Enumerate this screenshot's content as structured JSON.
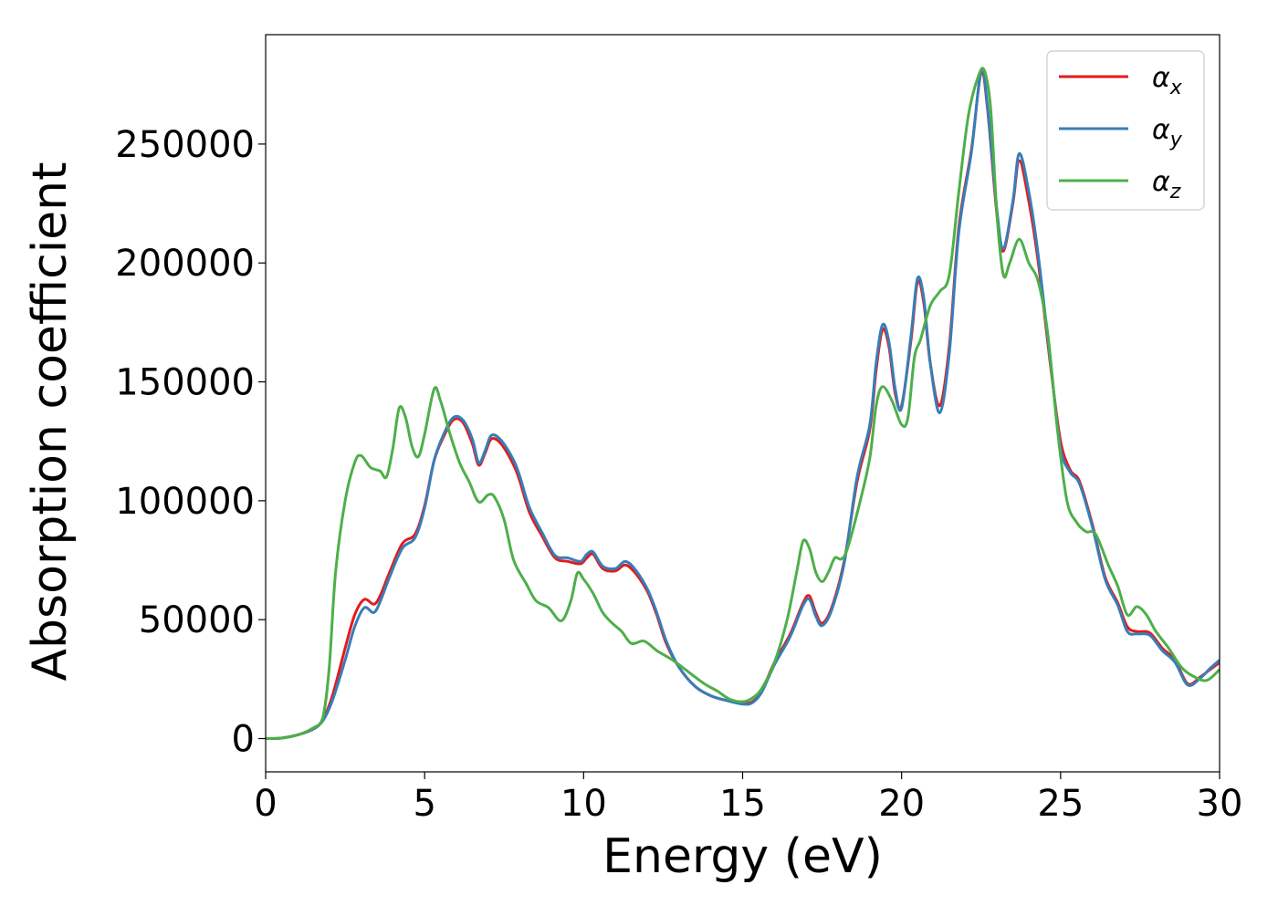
{
  "chart_data": {
    "type": "line",
    "xlabel": "Energy (eV)",
    "ylabel": "Absorption coefficient",
    "xlim": [
      0,
      30
    ],
    "ylim": [
      -14000,
      296000
    ],
    "xticks": [
      0,
      5,
      10,
      15,
      20,
      25,
      30
    ],
    "yticks": [
      0,
      50000,
      100000,
      150000,
      200000,
      250000
    ],
    "grid": false,
    "legend_position": "top-right",
    "series": [
      {
        "name": "α",
        "name_subscript": "x",
        "color": "#e41a1c",
        "points": [
          [
            0,
            0
          ],
          [
            0.5,
            200
          ],
          [
            1,
            1500
          ],
          [
            1.5,
            4000
          ],
          [
            1.8,
            8000
          ],
          [
            2.1,
            18000
          ],
          [
            2.5,
            38000
          ],
          [
            2.8,
            52000
          ],
          [
            3.1,
            58500
          ],
          [
            3.4,
            56500
          ],
          [
            3.6,
            60000
          ],
          [
            3.9,
            70000
          ],
          [
            4.3,
            82000
          ],
          [
            4.7,
            86000
          ],
          [
            5.0,
            98000
          ],
          [
            5.3,
            117000
          ],
          [
            5.6,
            127000
          ],
          [
            5.9,
            134000
          ],
          [
            6.2,
            133000
          ],
          [
            6.5,
            124000
          ],
          [
            6.7,
            115000
          ],
          [
            6.9,
            120000
          ],
          [
            7.1,
            126000
          ],
          [
            7.4,
            124000
          ],
          [
            7.8,
            115000
          ],
          [
            8.0,
            108000
          ],
          [
            8.3,
            95000
          ],
          [
            8.7,
            85000
          ],
          [
            9.1,
            76000
          ],
          [
            9.5,
            74500
          ],
          [
            9.9,
            73500
          ],
          [
            10.1,
            76000
          ],
          [
            10.3,
            77500
          ],
          [
            10.6,
            71500
          ],
          [
            11.0,
            70500
          ],
          [
            11.3,
            73000
          ],
          [
            11.6,
            70000
          ],
          [
            12.0,
            62000
          ],
          [
            12.3,
            52000
          ],
          [
            12.6,
            40000
          ],
          [
            13.0,
            30000
          ],
          [
            13.5,
            22000
          ],
          [
            14.0,
            18000
          ],
          [
            14.5,
            16000
          ],
          [
            15.0,
            15000
          ],
          [
            15.3,
            15500
          ],
          [
            15.6,
            20000
          ],
          [
            16.0,
            32000
          ],
          [
            16.5,
            44000
          ],
          [
            16.9,
            57000
          ],
          [
            17.1,
            60000
          ],
          [
            17.3,
            53000
          ],
          [
            17.5,
            48500
          ],
          [
            17.8,
            55000
          ],
          [
            18.2,
            75000
          ],
          [
            18.6,
            108000
          ],
          [
            19.0,
            130000
          ],
          [
            19.2,
            155000
          ],
          [
            19.4,
            172000
          ],
          [
            19.6,
            165000
          ],
          [
            19.8,
            145000
          ],
          [
            20.0,
            140000
          ],
          [
            20.3,
            168000
          ],
          [
            20.5,
            192000
          ],
          [
            20.7,
            183000
          ],
          [
            20.9,
            158000
          ],
          [
            21.2,
            140000
          ],
          [
            21.5,
            165000
          ],
          [
            21.8,
            215000
          ],
          [
            22.2,
            248000
          ],
          [
            22.5,
            280000
          ],
          [
            22.7,
            265000
          ],
          [
            23.0,
            220000
          ],
          [
            23.2,
            205000
          ],
          [
            23.5,
            225000
          ],
          [
            23.7,
            243000
          ],
          [
            24.0,
            226000
          ],
          [
            24.3,
            200000
          ],
          [
            24.7,
            155000
          ],
          [
            25.0,
            125000
          ],
          [
            25.3,
            113000
          ],
          [
            25.6,
            108000
          ],
          [
            26.0,
            90000
          ],
          [
            26.4,
            68000
          ],
          [
            26.8,
            57000
          ],
          [
            27.1,
            47000
          ],
          [
            27.4,
            45000
          ],
          [
            27.8,
            44500
          ],
          [
            28.2,
            38000
          ],
          [
            28.6,
            33000
          ],
          [
            29.0,
            23000
          ],
          [
            29.4,
            26000
          ],
          [
            29.7,
            29000
          ],
          [
            30.0,
            32000
          ]
        ]
      },
      {
        "name": "α",
        "name_subscript": "y",
        "color": "#377eb8",
        "points": [
          [
            0,
            0
          ],
          [
            0.5,
            200
          ],
          [
            1,
            1500
          ],
          [
            1.5,
            4000
          ],
          [
            1.8,
            7500
          ],
          [
            2.1,
            16000
          ],
          [
            2.5,
            33000
          ],
          [
            2.8,
            47000
          ],
          [
            3.1,
            55000
          ],
          [
            3.4,
            53000
          ],
          [
            3.6,
            57500
          ],
          [
            3.9,
            68000
          ],
          [
            4.3,
            80000
          ],
          [
            4.7,
            84500
          ],
          [
            5.0,
            97000
          ],
          [
            5.3,
            117000
          ],
          [
            5.6,
            128000
          ],
          [
            5.9,
            135000
          ],
          [
            6.2,
            134000
          ],
          [
            6.5,
            126000
          ],
          [
            6.7,
            116000
          ],
          [
            6.9,
            121000
          ],
          [
            7.1,
            127500
          ],
          [
            7.4,
            125500
          ],
          [
            7.8,
            117000
          ],
          [
            8.0,
            110000
          ],
          [
            8.3,
            97000
          ],
          [
            8.7,
            86500
          ],
          [
            9.1,
            77000
          ],
          [
            9.5,
            76000
          ],
          [
            9.9,
            74500
          ],
          [
            10.1,
            77500
          ],
          [
            10.3,
            78500
          ],
          [
            10.6,
            72500
          ],
          [
            11.0,
            71500
          ],
          [
            11.3,
            74500
          ],
          [
            11.6,
            71500
          ],
          [
            12.0,
            63000
          ],
          [
            12.3,
            53000
          ],
          [
            12.6,
            41000
          ],
          [
            13.0,
            30000
          ],
          [
            13.5,
            22000
          ],
          [
            14.0,
            18000
          ],
          [
            14.5,
            16000
          ],
          [
            15.0,
            14500
          ],
          [
            15.3,
            15000
          ],
          [
            15.6,
            19500
          ],
          [
            16.0,
            31000
          ],
          [
            16.5,
            43000
          ],
          [
            16.9,
            56000
          ],
          [
            17.1,
            58500
          ],
          [
            17.3,
            51500
          ],
          [
            17.5,
            47500
          ],
          [
            17.8,
            54000
          ],
          [
            18.2,
            74000
          ],
          [
            18.6,
            110000
          ],
          [
            19.0,
            132000
          ],
          [
            19.2,
            158000
          ],
          [
            19.4,
            174000
          ],
          [
            19.6,
            167000
          ],
          [
            19.8,
            147000
          ],
          [
            20.0,
            139000
          ],
          [
            20.3,
            170000
          ],
          [
            20.5,
            193500
          ],
          [
            20.7,
            185000
          ],
          [
            20.9,
            158000
          ],
          [
            21.2,
            137000
          ],
          [
            21.5,
            162000
          ],
          [
            21.8,
            213000
          ],
          [
            22.2,
            247000
          ],
          [
            22.5,
            281000
          ],
          [
            22.7,
            266000
          ],
          [
            23.0,
            222000
          ],
          [
            23.2,
            206000
          ],
          [
            23.5,
            226000
          ],
          [
            23.7,
            246000
          ],
          [
            24.0,
            230000
          ],
          [
            24.3,
            203000
          ],
          [
            24.7,
            156000
          ],
          [
            25.0,
            122000
          ],
          [
            25.3,
            112000
          ],
          [
            25.6,
            107000
          ],
          [
            26.0,
            89000
          ],
          [
            26.4,
            67000
          ],
          [
            26.8,
            56000
          ],
          [
            27.1,
            45000
          ],
          [
            27.4,
            44000
          ],
          [
            27.8,
            43500
          ],
          [
            28.2,
            37000
          ],
          [
            28.6,
            32000
          ],
          [
            29.0,
            22500
          ],
          [
            29.4,
            25500
          ],
          [
            29.7,
            29500
          ],
          [
            30.0,
            33000
          ]
        ]
      },
      {
        "name": "α",
        "name_subscript": "z",
        "color": "#4daf4a",
        "points": [
          [
            0,
            0
          ],
          [
            0.5,
            200
          ],
          [
            1,
            1500
          ],
          [
            1.5,
            4500
          ],
          [
            1.8,
            9000
          ],
          [
            2.0,
            30000
          ],
          [
            2.2,
            70000
          ],
          [
            2.5,
            100000
          ],
          [
            2.8,
            116000
          ],
          [
            3.0,
            119000
          ],
          [
            3.3,
            114000
          ],
          [
            3.6,
            112500
          ],
          [
            3.8,
            110000
          ],
          [
            4.0,
            122000
          ],
          [
            4.2,
            139000
          ],
          [
            4.4,
            135000
          ],
          [
            4.6,
            123000
          ],
          [
            4.8,
            118500
          ],
          [
            5.0,
            128000
          ],
          [
            5.3,
            147000
          ],
          [
            5.5,
            142000
          ],
          [
            5.8,
            128000
          ],
          [
            6.1,
            116000
          ],
          [
            6.4,
            108000
          ],
          [
            6.7,
            99500
          ],
          [
            7.0,
            102500
          ],
          [
            7.2,
            101500
          ],
          [
            7.5,
            92000
          ],
          [
            7.8,
            75000
          ],
          [
            8.2,
            65000
          ],
          [
            8.5,
            58000
          ],
          [
            8.9,
            55000
          ],
          [
            9.3,
            49500
          ],
          [
            9.6,
            58000
          ],
          [
            9.8,
            69500
          ],
          [
            10.0,
            67000
          ],
          [
            10.3,
            61000
          ],
          [
            10.6,
            53000
          ],
          [
            10.9,
            48500
          ],
          [
            11.2,
            45000
          ],
          [
            11.5,
            40000
          ],
          [
            11.9,
            41000
          ],
          [
            12.3,
            37000
          ],
          [
            12.8,
            33000
          ],
          [
            13.3,
            28000
          ],
          [
            13.8,
            23000
          ],
          [
            14.2,
            20000
          ],
          [
            14.6,
            16500
          ],
          [
            15.0,
            15500
          ],
          [
            15.3,
            17000
          ],
          [
            15.6,
            21000
          ],
          [
            16.0,
            32000
          ],
          [
            16.4,
            50000
          ],
          [
            16.7,
            70000
          ],
          [
            16.9,
            83000
          ],
          [
            17.1,
            80000
          ],
          [
            17.3,
            70000
          ],
          [
            17.5,
            66000
          ],
          [
            17.7,
            70000
          ],
          [
            17.9,
            76000
          ],
          [
            18.1,
            75500
          ],
          [
            18.3,
            80000
          ],
          [
            18.7,
            100000
          ],
          [
            19.0,
            118000
          ],
          [
            19.2,
            140000
          ],
          [
            19.4,
            148000
          ],
          [
            19.7,
            142000
          ],
          [
            20.0,
            132000
          ],
          [
            20.2,
            135000
          ],
          [
            20.4,
            160000
          ],
          [
            20.6,
            168000
          ],
          [
            20.9,
            182000
          ],
          [
            21.2,
            188000
          ],
          [
            21.5,
            195000
          ],
          [
            21.8,
            230000
          ],
          [
            22.1,
            262000
          ],
          [
            22.4,
            278000
          ],
          [
            22.6,
            281000
          ],
          [
            22.8,
            265000
          ],
          [
            23.0,
            220000
          ],
          [
            23.2,
            195000
          ],
          [
            23.4,
            200000
          ],
          [
            23.7,
            210000
          ],
          [
            24.0,
            200000
          ],
          [
            24.3,
            192000
          ],
          [
            24.6,
            170000
          ],
          [
            24.9,
            130000
          ],
          [
            25.2,
            100000
          ],
          [
            25.5,
            91000
          ],
          [
            25.8,
            87000
          ],
          [
            26.1,
            86000
          ],
          [
            26.5,
            73000
          ],
          [
            26.8,
            64000
          ],
          [
            27.1,
            52000
          ],
          [
            27.4,
            55500
          ],
          [
            27.7,
            52000
          ],
          [
            28.0,
            45000
          ],
          [
            28.4,
            38000
          ],
          [
            28.8,
            30000
          ],
          [
            29.2,
            26000
          ],
          [
            29.6,
            24500
          ],
          [
            30.0,
            29000
          ]
        ]
      }
    ]
  }
}
